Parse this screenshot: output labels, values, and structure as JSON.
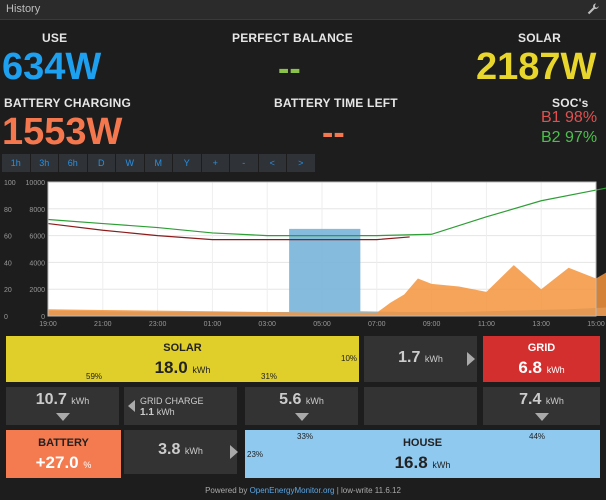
{
  "header": {
    "title": "History",
    "settings_icon": "wrench-icon"
  },
  "stats": {
    "use_label": "USE",
    "use_value": "634W",
    "use_color": "#1ea0f0",
    "balance_label": "PERFECT BALANCE",
    "balance_value": "--",
    "balance_color": "#8bc34a",
    "solar_label": "SOLAR",
    "solar_value": "2187W",
    "solar_color": "#e8d62c",
    "charging_label": "BATTERY CHARGING",
    "charging_value": "1553W",
    "charging_color": "#f4774e",
    "timeleft_label": "BATTERY TIME LEFT",
    "timeleft_value": "--",
    "timeleft_color": "#f4774e",
    "soc_label": "SOC's",
    "b1": "B1 98%",
    "b1_color": "#e05050",
    "b2": "B2 97%",
    "b2_color": "#4cbf4c"
  },
  "range_buttons": [
    "1h",
    "3h",
    "6h",
    "D",
    "W",
    "M",
    "Y",
    "+",
    "-",
    "<",
    ">"
  ],
  "chart_data": {
    "type": "area",
    "x_ticks": [
      "19:00",
      "21:00",
      "23:00",
      "01:00",
      "03:00",
      "05:00",
      "07:00",
      "09:00",
      "11:00",
      "13:00",
      "15:00"
    ],
    "y_left_ticks": [
      "0",
      "2000",
      "4000",
      "6000",
      "8000",
      "10000"
    ],
    "y_right_ticks": [
      "0",
      "20",
      "40",
      "60",
      "80",
      "100"
    ],
    "ylim": [
      0,
      10000
    ],
    "series": [
      {
        "color": "#78b4d8",
        "x": [
          0,
          2,
          4,
          6,
          8,
          8.8,
          8.8,
          11.4,
          11.4,
          13,
          15,
          17,
          19,
          21
        ],
        "values": [
          400,
          350,
          300,
          300,
          300,
          300,
          6500,
          6500,
          350,
          300,
          300,
          400,
          500,
          700
        ]
      },
      {
        "color": "#f5943c",
        "x": [
          0,
          2,
          4,
          6,
          8,
          10,
          12,
          12.5,
          13,
          13.5,
          14,
          15,
          16,
          17,
          18,
          19,
          20,
          21
        ],
        "values": [
          500,
          450,
          400,
          350,
          300,
          250,
          250,
          1000,
          1600,
          2800,
          2400,
          2200,
          1800,
          3800,
          2000,
          3600,
          2800,
          4000
        ]
      },
      {
        "color": "#2e9e36",
        "x": [
          0,
          2,
          4,
          6,
          8,
          10,
          12,
          14,
          16,
          18,
          20,
          21
        ],
        "values": [
          7200,
          6900,
          6600,
          6200,
          6000,
          6000,
          6000,
          6100,
          7400,
          8600,
          9400,
          9800
        ]
      },
      {
        "color": "#8a1c1c",
        "x": [
          0,
          2,
          4,
          6,
          8,
          10,
          12,
          13.2
        ],
        "values": [
          6900,
          6400,
          6000,
          5700,
          5700,
          5700,
          5700,
          5900
        ]
      }
    ]
  },
  "flows": {
    "solar_title": "SOLAR",
    "solar_value": "18.0",
    "solar_unit": "kWh",
    "solar_pct_left": "59%",
    "solar_pct_mid": "31%",
    "solar_pct_right": "10%",
    "solar_to_grid_value": "1.7",
    "solar_to_grid_unit": "kWh",
    "grid_title": "GRID",
    "grid_value": "6.8",
    "grid_unit": "kWh",
    "solar_down_value": "10.7",
    "solar_down_unit": "kWh",
    "grid_charge_label": "GRID CHARGE",
    "grid_charge_value": "1.1",
    "grid_charge_unit": "kWh",
    "solar_house_value": "5.6",
    "solar_house_unit": "kWh",
    "grid_house_value": "7.4",
    "grid_house_unit": "kWh",
    "battery_title": "BATTERY",
    "battery_value": "+27.0",
    "battery_unit": "%",
    "battery_house_value": "3.8",
    "battery_house_unit": "kWh",
    "house_title": "HOUSE",
    "house_value": "16.8",
    "house_unit": "kWh",
    "house_pct_left": "23%",
    "house_pct_mid": "33%",
    "house_pct_right": "44%"
  },
  "footer": {
    "prefix": "Powered by ",
    "link": "OpenEnergyMonitor.org",
    "suffix": " | low-write 11.6.12"
  }
}
